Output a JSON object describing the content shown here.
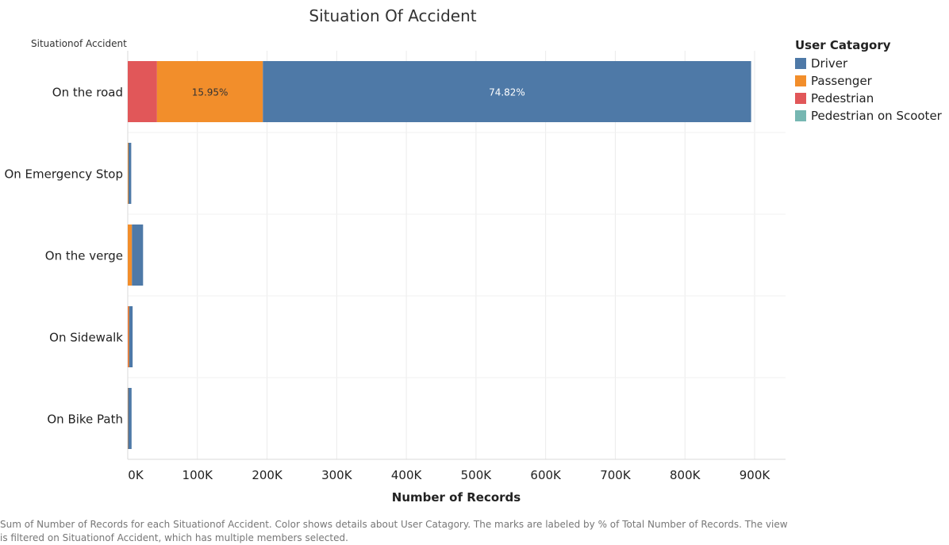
{
  "chart_data": {
    "type": "bar",
    "orientation": "horizontal",
    "stacked": true,
    "title": "Situation Of Accident",
    "row_header": "Situationof Accident",
    "xlabel": "Number of Records",
    "xlim": [
      0,
      930000
    ],
    "xticks": [
      0,
      100000,
      200000,
      300000,
      400000,
      500000,
      600000,
      700000,
      800000,
      900000
    ],
    "xtick_labels": [
      "0K",
      "100K",
      "200K",
      "300K",
      "400K",
      "500K",
      "600K",
      "700K",
      "800K",
      "900K"
    ],
    "categories": [
      "On the road",
      "On Emergency Stop",
      "On the verge",
      "On Sidewalk",
      "On Bike Path"
    ],
    "legend_title": "User Catagory",
    "legend_position": "right",
    "grid": "vertical",
    "series": [
      {
        "name": "Pedestrian",
        "color": "#e15759",
        "values": [
          42000,
          0,
          0,
          500,
          0
        ]
      },
      {
        "name": "Passenger",
        "color": "#f28e2b",
        "values": [
          152000,
          1000,
          6000,
          1500,
          500
        ]
      },
      {
        "name": "Driver",
        "color": "#4e79a7",
        "values": [
          701000,
          4000,
          16000,
          5000,
          5000
        ]
      },
      {
        "name": "Pedestrian on Scooter",
        "color": "#76b7b2",
        "values": [
          0,
          0,
          0,
          0,
          0
        ]
      }
    ],
    "legend_order": [
      "Driver",
      "Passenger",
      "Pedestrian",
      "Pedestrian on Scooter"
    ],
    "data_labels": [
      {
        "category": "On the road",
        "series": "Passenger",
        "text": "15.95%"
      },
      {
        "category": "On the road",
        "series": "Driver",
        "text": "74.82%"
      }
    ]
  },
  "footer": "Sum of Number of Records for each Situationof Accident.  Color shows details about User Catagory.  The marks are labeled by % of Total Number of Records. The view is filtered on Situationof Accident, which has multiple members selected."
}
